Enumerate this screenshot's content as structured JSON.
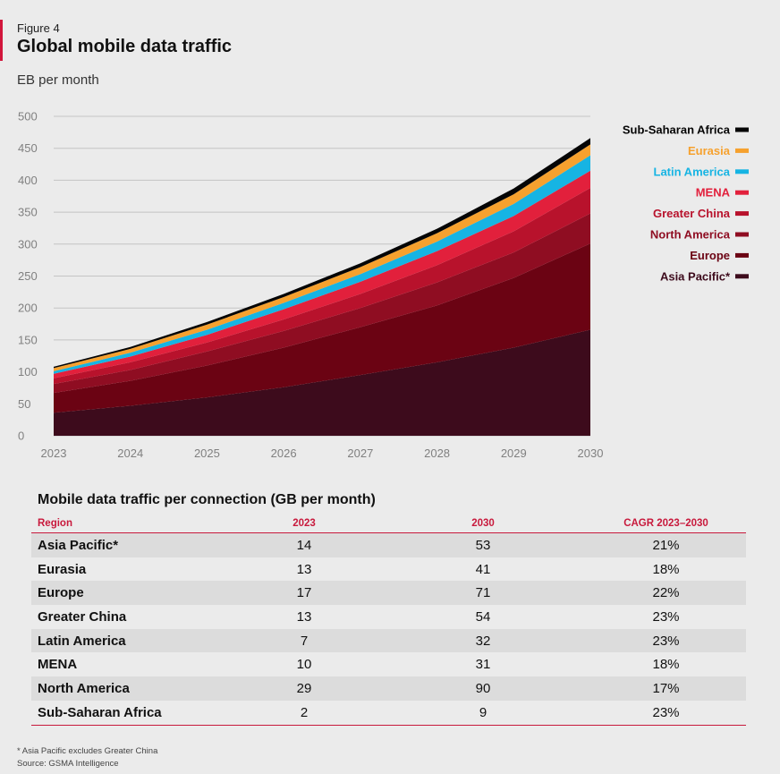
{
  "figure": {
    "label": "Figure 4",
    "title": "Global mobile data traffic",
    "unit": "EB per month"
  },
  "chart_data": {
    "type": "area",
    "stacked": true,
    "title": "Global mobile data traffic",
    "ylabel": "EB per month",
    "xlabel": "",
    "x": [
      "2023",
      "2024",
      "2025",
      "2026",
      "2027",
      "2028",
      "2029",
      "2030"
    ],
    "ylim": [
      0,
      500
    ],
    "yticks": [
      0,
      50,
      100,
      150,
      200,
      250,
      300,
      350,
      400,
      450,
      500
    ],
    "grid": true,
    "legend_position": "right",
    "series": [
      {
        "name": "Asia Pacific*",
        "color": "#3d0b1c",
        "values": [
          36,
          47,
          60,
          76,
          95,
          115,
          138,
          166
        ]
      },
      {
        "name": "Europe",
        "color": "#6b0313",
        "values": [
          31,
          39,
          50,
          62,
          75,
          89,
          109,
          135
        ]
      },
      {
        "name": "North America",
        "color": "#8f0d22",
        "values": [
          14,
          17,
          22,
          26,
          30,
          36,
          40,
          47
        ]
      },
      {
        "name": "Greater China",
        "color": "#b8122c",
        "values": [
          9,
          12,
          14,
          18,
          22,
          27,
          33,
          40
        ]
      },
      {
        "name": "MENA",
        "color": "#e2203c",
        "values": [
          7,
          9,
          12,
          16,
          19,
          22,
          24,
          27
        ]
      },
      {
        "name": "Latin America",
        "color": "#16b4e3",
        "values": [
          4,
          6,
          8,
          10,
          12,
          15,
          19,
          24
        ]
      },
      {
        "name": "Eurasia",
        "color": "#f6a12e",
        "values": [
          5,
          6,
          8,
          9,
          11,
          13,
          15,
          17
        ]
      },
      {
        "name": "Sub-Saharan Africa",
        "color": "#050505",
        "values": [
          2,
          3,
          4,
          5,
          6,
          7,
          9,
          10
        ]
      }
    ]
  },
  "table": {
    "title": "Mobile data traffic per connection (GB per month)",
    "headers": [
      "Region",
      "2023",
      "2030",
      "CAGR 2023–2030"
    ],
    "rows": [
      [
        "Asia Pacific*",
        "14",
        "53",
        "21%"
      ],
      [
        "Eurasia",
        "13",
        "41",
        "18%"
      ],
      [
        "Europe",
        "17",
        "71",
        "22%"
      ],
      [
        "Greater China",
        "13",
        "54",
        "23%"
      ],
      [
        "Latin America",
        "7",
        "32",
        "23%"
      ],
      [
        "MENA",
        "10",
        "31",
        "18%"
      ],
      [
        "North America",
        "29",
        "90",
        "17%"
      ],
      [
        "Sub-Saharan Africa",
        "2",
        "9",
        "23%"
      ]
    ]
  },
  "footnote": "* Asia Pacific excludes Greater China",
  "source": "Source: GSMA Intelligence"
}
